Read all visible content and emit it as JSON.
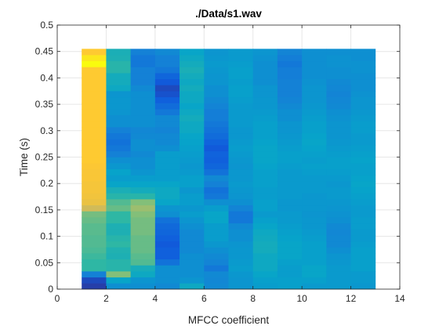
{
  "chart_data": {
    "type": "heatmap",
    "title": "./Data/s1.wav",
    "xlabel": "MFCC coefficient",
    "ylabel": "Time (s)",
    "xlim": [
      0,
      14
    ],
    "ylim": [
      0,
      0.5
    ],
    "x_ticks": [
      0,
      2,
      4,
      6,
      8,
      10,
      12,
      14
    ],
    "y_ticks": [
      0,
      0.05,
      0.1,
      0.15,
      0.2,
      0.25,
      0.3,
      0.35,
      0.4,
      0.45,
      0.5
    ],
    "x_tick_labels": [
      "0",
      "2",
      "4",
      "6",
      "8",
      "10",
      "12",
      "14"
    ],
    "y_tick_labels": [
      "0",
      "0.05",
      "0.1",
      "0.15",
      "0.2",
      "0.25",
      "0.3",
      "0.35",
      "0.4",
      "0.45",
      "0.5"
    ],
    "grid": true,
    "colormap": "parula",
    "coefficient_edges": [
      1,
      2,
      3,
      4,
      5,
      6,
      7,
      8,
      9,
      10,
      11,
      12,
      13
    ],
    "time_range": [
      0,
      0.455
    ],
    "time_frames": 40,
    "value_range": [
      0,
      1
    ],
    "color_stops": [
      "#352a87",
      "#0f5cdd",
      "#1481d6",
      "#06a4ca",
      "#2eb7a4",
      "#87bf77",
      "#d1bb59",
      "#fec832",
      "#f9fb0e"
    ],
    "columns": [
      {
        "coefficient": 1,
        "values": [
          0.05,
          0.08,
          0.25,
          0.5,
          0.5,
          0.52,
          0.54,
          0.55,
          0.55,
          0.56,
          0.56,
          0.58,
          0.6,
          0.75,
          0.82,
          0.84,
          0.85,
          0.85,
          0.86,
          0.86,
          0.87,
          0.88,
          0.88,
          0.88,
          0.88,
          0.88,
          0.88,
          0.88,
          0.88,
          0.88,
          0.88,
          0.88,
          0.88,
          0.88,
          0.88,
          0.88,
          0.88,
          1.0,
          0.95,
          0.88
        ]
      },
      {
        "coefficient": 2,
        "values": [
          0.3,
          0.38,
          0.62,
          0.48,
          0.48,
          0.45,
          0.46,
          0.5,
          0.48,
          0.45,
          0.45,
          0.5,
          0.5,
          0.58,
          0.55,
          0.48,
          0.44,
          0.38,
          0.35,
          0.37,
          0.33,
          0.3,
          0.25,
          0.22,
          0.2,
          0.22,
          0.25,
          0.3,
          0.3,
          0.32,
          0.33,
          0.33,
          0.32,
          0.4,
          0.42,
          0.42,
          0.48,
          0.48,
          0.45,
          0.44
        ]
      },
      {
        "coefficient": 3,
        "values": [
          0.3,
          0.32,
          0.4,
          0.43,
          0.55,
          0.56,
          0.58,
          0.58,
          0.58,
          0.6,
          0.6,
          0.6,
          0.62,
          0.66,
          0.62,
          0.48,
          0.42,
          0.38,
          0.35,
          0.32,
          0.3,
          0.3,
          0.28,
          0.3,
          0.3,
          0.28,
          0.27,
          0.3,
          0.3,
          0.3,
          0.3,
          0.3,
          0.3,
          0.28,
          0.25,
          0.25,
          0.25,
          0.22,
          0.22,
          0.25
        ]
      },
      {
        "coefficient": 4,
        "values": [
          0.28,
          0.3,
          0.3,
          0.3,
          0.2,
          0.14,
          0.14,
          0.12,
          0.14,
          0.16,
          0.17,
          0.2,
          0.3,
          0.32,
          0.38,
          0.4,
          0.4,
          0.38,
          0.35,
          0.35,
          0.35,
          0.35,
          0.35,
          0.3,
          0.28,
          0.28,
          0.26,
          0.28,
          0.28,
          0.22,
          0.18,
          0.14,
          0.1,
          0.08,
          0.12,
          0.16,
          0.22,
          0.25,
          0.25,
          0.28
        ]
      },
      {
        "coefficient": 5,
        "values": [
          0.4,
          0.32,
          0.3,
          0.3,
          0.3,
          0.3,
          0.28,
          0.28,
          0.28,
          0.28,
          0.3,
          0.32,
          0.35,
          0.33,
          0.35,
          0.35,
          0.33,
          0.36,
          0.36,
          0.34,
          0.33,
          0.34,
          0.35,
          0.36,
          0.37,
          0.38,
          0.4,
          0.4,
          0.42,
          0.4,
          0.38,
          0.4,
          0.4,
          0.42,
          0.4,
          0.42,
          0.44,
          0.42,
          0.4,
          0.38
        ]
      },
      {
        "coefficient": 6,
        "values": [
          0.28,
          0.27,
          0.28,
          0.22,
          0.26,
          0.28,
          0.3,
          0.33,
          0.35,
          0.35,
          0.35,
          0.38,
          0.38,
          0.35,
          0.3,
          0.22,
          0.2,
          0.25,
          0.28,
          0.2,
          0.16,
          0.14,
          0.15,
          0.12,
          0.15,
          0.18,
          0.2,
          0.22,
          0.24,
          0.24,
          0.26,
          0.28,
          0.3,
          0.3,
          0.32,
          0.32,
          0.33,
          0.34,
          0.33,
          0.32
        ]
      },
      {
        "coefficient": 7,
        "values": [
          0.32,
          0.32,
          0.33,
          0.35,
          0.34,
          0.33,
          0.33,
          0.32,
          0.3,
          0.3,
          0.28,
          0.22,
          0.22,
          0.26,
          0.3,
          0.32,
          0.33,
          0.34,
          0.33,
          0.33,
          0.32,
          0.33,
          0.34,
          0.35,
          0.34,
          0.33,
          0.33,
          0.34,
          0.34,
          0.34,
          0.34,
          0.35,
          0.36,
          0.36,
          0.35,
          0.36,
          0.36,
          0.35,
          0.34,
          0.34
        ]
      },
      {
        "coefficient": 8,
        "values": [
          0.35,
          0.36,
          0.38,
          0.4,
          0.4,
          0.4,
          0.42,
          0.42,
          0.41,
          0.4,
          0.38,
          0.36,
          0.34,
          0.36,
          0.36,
          0.35,
          0.35,
          0.36,
          0.36,
          0.36,
          0.37,
          0.38,
          0.38,
          0.38,
          0.37,
          0.36,
          0.36,
          0.36,
          0.35,
          0.34,
          0.33,
          0.33,
          0.32,
          0.32,
          0.3,
          0.3,
          0.3,
          0.3,
          0.31,
          0.32
        ]
      },
      {
        "coefficient": 9,
        "values": [
          0.36,
          0.36,
          0.35,
          0.35,
          0.36,
          0.38,
          0.38,
          0.38,
          0.37,
          0.36,
          0.35,
          0.34,
          0.34,
          0.33,
          0.33,
          0.34,
          0.34,
          0.34,
          0.34,
          0.34,
          0.35,
          0.36,
          0.36,
          0.35,
          0.34,
          0.33,
          0.32,
          0.32,
          0.3,
          0.3,
          0.28,
          0.26,
          0.25,
          0.25,
          0.25,
          0.24,
          0.24,
          0.22,
          0.24,
          0.26
        ]
      },
      {
        "coefficient": 10,
        "values": [
          0.34,
          0.36,
          0.38,
          0.38,
          0.36,
          0.36,
          0.36,
          0.36,
          0.35,
          0.34,
          0.33,
          0.33,
          0.32,
          0.33,
          0.33,
          0.33,
          0.34,
          0.34,
          0.34,
          0.35,
          0.36,
          0.35,
          0.36,
          0.37,
          0.38,
          0.37,
          0.36,
          0.36,
          0.35,
          0.34,
          0.33,
          0.32,
          0.32,
          0.32,
          0.31,
          0.3,
          0.3,
          0.3,
          0.3,
          0.3
        ]
      },
      {
        "coefficient": 11,
        "values": [
          0.34,
          0.34,
          0.34,
          0.34,
          0.33,
          0.32,
          0.3,
          0.28,
          0.28,
          0.27,
          0.28,
          0.3,
          0.31,
          0.32,
          0.33,
          0.34,
          0.34,
          0.33,
          0.34,
          0.35,
          0.36,
          0.36,
          0.35,
          0.34,
          0.33,
          0.32,
          0.32,
          0.32,
          0.31,
          0.3,
          0.28,
          0.27,
          0.26,
          0.27,
          0.28,
          0.3,
          0.3,
          0.31,
          0.31,
          0.3
        ]
      },
      {
        "coefficient": 12,
        "values": [
          0.33,
          0.34,
          0.34,
          0.36,
          0.36,
          0.36,
          0.36,
          0.35,
          0.34,
          0.34,
          0.35,
          0.35,
          0.34,
          0.34,
          0.35,
          0.36,
          0.37,
          0.38,
          0.37,
          0.36,
          0.36,
          0.37,
          0.36,
          0.35,
          0.34,
          0.34,
          0.35,
          0.35,
          0.34,
          0.33,
          0.32,
          0.32,
          0.31,
          0.3,
          0.3,
          0.3,
          0.31,
          0.31,
          0.3,
          0.3
        ]
      }
    ]
  }
}
